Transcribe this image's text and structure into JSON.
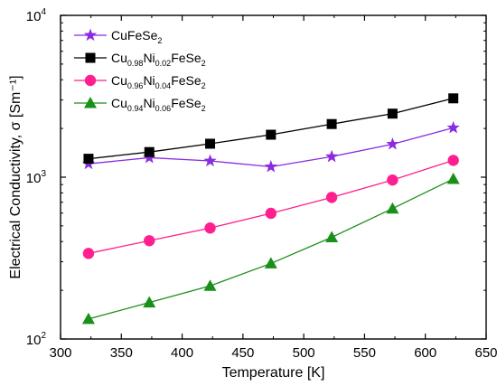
{
  "chart_data": {
    "type": "line",
    "xlabel": "Temperature [K]",
    "ylabel": "Electrical Conductivity, σ [Sm⁻¹]",
    "xlim": [
      300,
      650
    ],
    "ylim": [
      100,
      10000
    ],
    "yscale": "log",
    "x_ticks": [
      300,
      350,
      400,
      450,
      500,
      550,
      600,
      650
    ],
    "y_ticks": [
      100,
      1000,
      10000
    ],
    "grid": false,
    "legend_position": "top-left",
    "x": [
      323,
      373,
      423,
      473,
      523,
      573,
      623
    ],
    "series": [
      {
        "name": "CuFeSe2",
        "label_parts": [
          [
            "CuFeSe",
            "n"
          ],
          [
            "2",
            "sub"
          ]
        ],
        "marker": "star",
        "color": "#8a2be2",
        "values": [
          1210,
          1320,
          1260,
          1160,
          1340,
          1600,
          2020
        ]
      },
      {
        "name": "Cu0.98Ni0.02FeSe2",
        "label_parts": [
          [
            "Cu",
            "n"
          ],
          [
            "0.98",
            "sub"
          ],
          [
            "Ni",
            "n"
          ],
          [
            "0.02",
            "sub"
          ],
          [
            "FeSe",
            "n"
          ],
          [
            "2",
            "sub"
          ]
        ],
        "marker": "square",
        "color": "#000000",
        "values": [
          1300,
          1430,
          1610,
          1830,
          2130,
          2470,
          3070
        ]
      },
      {
        "name": "Cu0.96Ni0.04FeSe2",
        "label_parts": [
          [
            "Cu",
            "n"
          ],
          [
            "0.96",
            "sub"
          ],
          [
            "Ni",
            "n"
          ],
          [
            "0.04",
            "sub"
          ],
          [
            "FeSe",
            "n"
          ],
          [
            "2",
            "sub"
          ]
        ],
        "marker": "circle",
        "color": "#ff1f8f",
        "values": [
          338,
          405,
          485,
          598,
          750,
          960,
          1270
        ]
      },
      {
        "name": "Cu0.94Ni0.06FeSe2",
        "label_parts": [
          [
            "Cu",
            "n"
          ],
          [
            "0.94",
            "sub"
          ],
          [
            "Ni",
            "n"
          ],
          [
            "0.06",
            "sub"
          ],
          [
            "FeSe",
            "n"
          ],
          [
            "2",
            "sub"
          ]
        ],
        "marker": "triangle",
        "color": "#1a8f1a",
        "values": [
          133,
          168,
          213,
          293,
          425,
          640,
          975
        ]
      }
    ]
  }
}
